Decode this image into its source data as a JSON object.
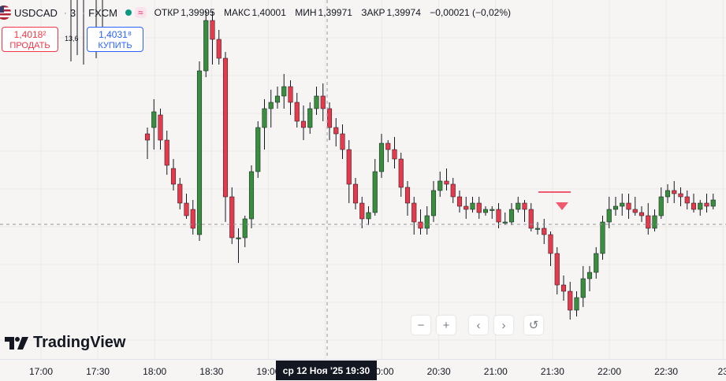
{
  "symbol": {
    "name": "USDCAD",
    "interval": "3",
    "exchange": "FXCM",
    "separator": "·",
    "wave": "≈"
  },
  "ohlc": {
    "open_label": "ОТКР",
    "open": "1,39995",
    "high_label": "МАКС",
    "high": "1,40001",
    "low_label": "МИН",
    "low": "1,39971",
    "close_label": "ЗАКР",
    "close": "1,39974",
    "change": "−0,00021 (−0,02%)"
  },
  "trade": {
    "sell_price": "1,4018²",
    "sell_label": "ПРОДАТЬ",
    "buy_price": "1,4031⁸",
    "buy_label": "КУПИТЬ",
    "spread": "13,6"
  },
  "brand": "TradingView",
  "nav": {
    "zoom_out": "−",
    "zoom_in": "+",
    "scroll_left": "‹",
    "scroll_right": "›",
    "reset": "↺"
  },
  "time_axis": [
    "17:00",
    "17:30",
    "18:00",
    "18:30",
    "19:00",
    "19:30",
    "20:00",
    "20:30",
    "21:00",
    "21:30",
    "22:00",
    "22:30",
    "23"
  ],
  "crosshair_label": "ср 12 Ноя '25   19:30",
  "colors": {
    "up": "#388e3c",
    "down": "#e5394c",
    "marker": "#f05a6e",
    "background": "#f7f5f3"
  },
  "chart_data": {
    "type": "candlestick",
    "note_values": "relative price scale 0-100 (no price axis visible)",
    "candles": [
      [
        60,
        58,
        62,
        52
      ],
      [
        62,
        67,
        71,
        55
      ],
      [
        66,
        58,
        68,
        55
      ],
      [
        58,
        50,
        61,
        47
      ],
      [
        49,
        44,
        52,
        42
      ],
      [
        44,
        38,
        46,
        36
      ],
      [
        38,
        34,
        41,
        33
      ],
      [
        36,
        30,
        39,
        28
      ],
      [
        28,
        80,
        83,
        26
      ],
      [
        80,
        96,
        99,
        78
      ],
      [
        96,
        90,
        99,
        82
      ],
      [
        90,
        84,
        93,
        82
      ],
      [
        84,
        40,
        86,
        32
      ],
      [
        40,
        27,
        43,
        25
      ],
      [
        27,
        27,
        30,
        19
      ],
      [
        27,
        33,
        34,
        24
      ],
      [
        33,
        48,
        50,
        30
      ],
      [
        48,
        62,
        64,
        46
      ],
      [
        62,
        68,
        71,
        55
      ],
      [
        68,
        70,
        74,
        62
      ],
      [
        70,
        72,
        75,
        68
      ],
      [
        72,
        75,
        79,
        68
      ],
      [
        75,
        70,
        77,
        66
      ],
      [
        70,
        64,
        73,
        62
      ],
      [
        64,
        62,
        69,
        58
      ],
      [
        62,
        68,
        70,
        60
      ],
      [
        68,
        72,
        75,
        66
      ],
      [
        72,
        68,
        76,
        64
      ],
      [
        68,
        62,
        70,
        58
      ],
      [
        62,
        60,
        65,
        56
      ],
      [
        60,
        55,
        63,
        52
      ],
      [
        55,
        44,
        58,
        38
      ],
      [
        44,
        38,
        46,
        36
      ],
      [
        38,
        33,
        40,
        30
      ],
      [
        33,
        35,
        37,
        31
      ],
      [
        35,
        48,
        52,
        34
      ],
      [
        48,
        57,
        60,
        46
      ],
      [
        57,
        55,
        58,
        51
      ],
      [
        55,
        52,
        59,
        49
      ],
      [
        52,
        43,
        54,
        40
      ],
      [
        43,
        38,
        45,
        34
      ],
      [
        38,
        32,
        40,
        28
      ],
      [
        32,
        30,
        36,
        28
      ],
      [
        30,
        34,
        37,
        28
      ],
      [
        34,
        42,
        45,
        32
      ],
      [
        42,
        45,
        48,
        40
      ],
      [
        45,
        44,
        49,
        42
      ],
      [
        44,
        40,
        46,
        38
      ],
      [
        40,
        37,
        42,
        35
      ],
      [
        37,
        36,
        40,
        33
      ],
      [
        36,
        38,
        40,
        35
      ],
      [
        38,
        35,
        40,
        33
      ],
      [
        35,
        36,
        37,
        34
      ],
      [
        36,
        36,
        37,
        33
      ],
      [
        36,
        32,
        38,
        30
      ],
      [
        32,
        32,
        35,
        31
      ],
      [
        32,
        36,
        38,
        31
      ],
      [
        36,
        38,
        40,
        35
      ],
      [
        38,
        36,
        39,
        32
      ],
      [
        36,
        30,
        38,
        29
      ],
      [
        30,
        30,
        32,
        28
      ],
      [
        30,
        28,
        33,
        25
      ],
      [
        28,
        22,
        29,
        18
      ],
      [
        22,
        12,
        24,
        9
      ],
      [
        12,
        10,
        15,
        7
      ],
      [
        10,
        4,
        13,
        1
      ],
      [
        4,
        8,
        10,
        2
      ],
      [
        8,
        14,
        18,
        5
      ],
      [
        14,
        16,
        18,
        10
      ],
      [
        16,
        22,
        24,
        14
      ],
      [
        22,
        32,
        34,
        20
      ],
      [
        32,
        36,
        40,
        30
      ],
      [
        36,
        37,
        40,
        34
      ],
      [
        37,
        38,
        41,
        34
      ],
      [
        38,
        36,
        41,
        33
      ],
      [
        36,
        35,
        40,
        34
      ],
      [
        35,
        34,
        37,
        32
      ],
      [
        34,
        30,
        38,
        28
      ],
      [
        30,
        34,
        36,
        29
      ],
      [
        34,
        40,
        43,
        33
      ],
      [
        40,
        42,
        44,
        38
      ],
      [
        42,
        41,
        45,
        38
      ],
      [
        41,
        40,
        43,
        37
      ],
      [
        40,
        38,
        42,
        36
      ],
      [
        38,
        36,
        41,
        35
      ],
      [
        36,
        38,
        39,
        34
      ],
      [
        38,
        37,
        41,
        35
      ],
      [
        37,
        39,
        41,
        36
      ]
    ]
  }
}
